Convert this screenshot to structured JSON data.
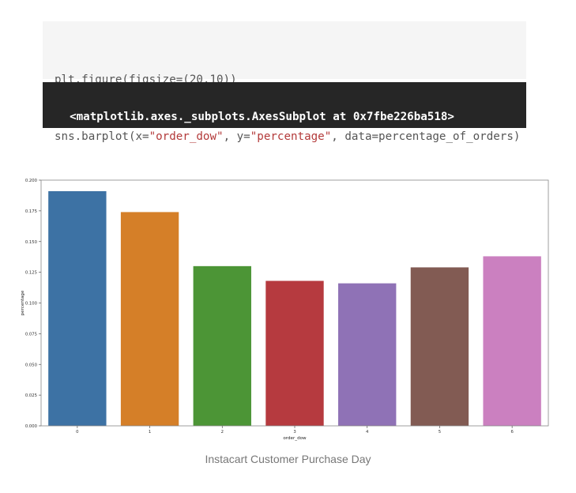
{
  "code_cell": {
    "line1": "plt.figure(figsize=(20,10))",
    "line2_prefix": "sns.barplot(x=",
    "line2_x_str": "\"order_dow\"",
    "line2_mid": ", y=",
    "line2_y_str": "\"percentage\"",
    "line2_suffix": ", data=percentage_of_orders)"
  },
  "output_cell": {
    "text": "<matplotlib.axes._subplots.AxesSubplot at 0x7fbe226ba518>"
  },
  "caption": "Instacart Customer Purchase Day",
  "chart_data": {
    "type": "bar",
    "categories": [
      "0",
      "1",
      "2",
      "3",
      "4",
      "5",
      "6"
    ],
    "values": [
      0.191,
      0.174,
      0.13,
      0.118,
      0.116,
      0.129,
      0.138
    ],
    "colors": [
      "#3d72a4",
      "#d57f28",
      "#4c9536",
      "#b63a3f",
      "#8f72b6",
      "#825b53",
      "#cb80c0"
    ],
    "xlabel": "order_dow",
    "ylabel": "percentage",
    "ylim": [
      0,
      0.2
    ],
    "yticks": [
      "0.000",
      "0.025",
      "0.050",
      "0.075",
      "0.100",
      "0.125",
      "0.150",
      "0.175",
      "0.200"
    ],
    "grid": false
  }
}
